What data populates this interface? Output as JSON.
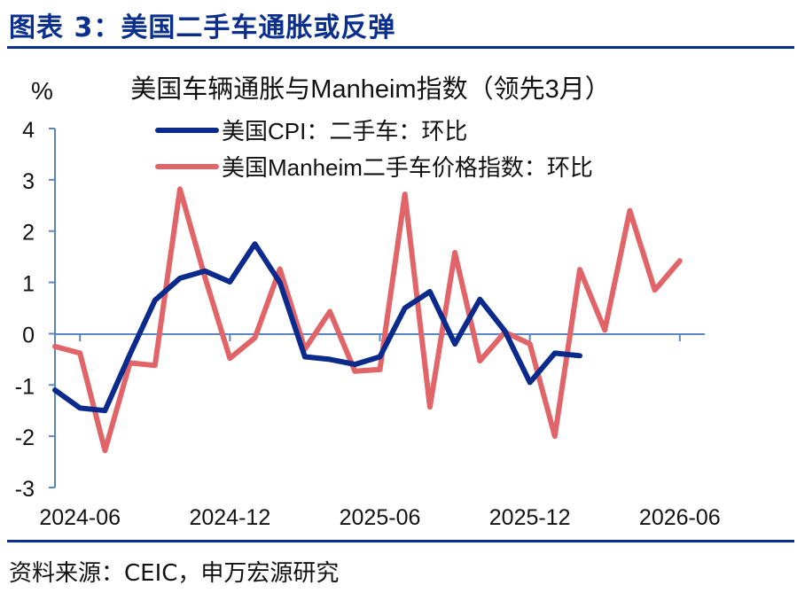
{
  "figure_title": "图表 3：美国二手车通胀或反弹",
  "source": "资料来源：CEIC，申万宏源研究",
  "colors": {
    "title": "#0a2f8c",
    "series_cpi": "#0a2a8c",
    "series_manheim": "#e06468",
    "axis": "#5b86c5"
  },
  "chart_data": {
    "type": "line",
    "title": "美国车辆通胀与Manheim指数（领先3月）",
    "ylabel": "%",
    "ylim": [
      -3,
      4
    ],
    "yticks": [
      "4",
      "3",
      "2",
      "1",
      "0",
      "-1",
      "-2",
      "-3"
    ],
    "xlim": [
      "2024-05",
      "2026-07"
    ],
    "xtick_labels": [
      "2024-06",
      "2024-12",
      "2025-06",
      "2025-12",
      "2026-06"
    ],
    "legend_position": "top-center",
    "grid": false,
    "series": [
      {
        "name": "美国CPI：二手车：环比",
        "x": [
          "2024-05",
          "2024-06",
          "2024-07",
          "2024-08",
          "2024-09",
          "2024-10",
          "2024-11",
          "2024-12",
          "2025-01",
          "2025-02",
          "2025-03",
          "2025-04",
          "2025-05",
          "2025-06",
          "2025-07",
          "2025-08",
          "2025-09",
          "2025-10",
          "2025-11",
          "2025-12",
          "2026-01",
          "2026-02"
        ],
        "values": [
          -1.1,
          -1.45,
          -1.5,
          -0.4,
          0.65,
          1.08,
          1.22,
          1.01,
          1.75,
          1.0,
          -0.45,
          -0.5,
          -0.6,
          -0.45,
          0.5,
          0.82,
          -0.2,
          0.67,
          0.05,
          -0.95,
          -0.38,
          -0.43
        ]
      },
      {
        "name": "美国Manheim二手车价格指数：环比",
        "x": [
          "2024-05",
          "2024-06",
          "2024-07",
          "2024-08",
          "2024-09",
          "2024-10",
          "2024-11",
          "2024-12",
          "2025-01",
          "2025-02",
          "2025-03",
          "2025-04",
          "2025-05",
          "2025-06",
          "2025-07",
          "2025-08",
          "2025-09",
          "2025-10",
          "2025-11",
          "2025-12",
          "2026-01",
          "2026-02",
          "2026-03",
          "2026-04",
          "2026-05",
          "2026-06"
        ],
        "values": [
          -0.25,
          -0.38,
          -2.28,
          -0.57,
          -0.62,
          2.82,
          1.1,
          -0.48,
          -0.08,
          1.26,
          -0.3,
          0.43,
          -0.73,
          -0.7,
          2.72,
          -1.43,
          1.58,
          -0.53,
          0.03,
          -0.2,
          -2.0,
          1.25,
          0.07,
          2.4,
          0.85,
          1.42
        ]
      }
    ]
  }
}
